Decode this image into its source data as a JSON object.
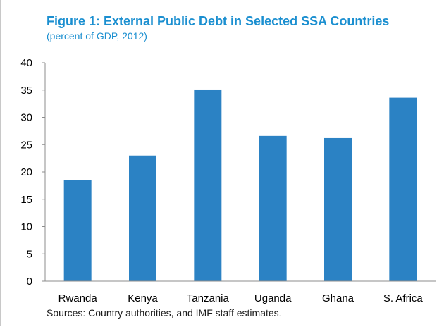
{
  "chart_data": {
    "type": "bar",
    "title": "Figure 1: External Public Debt in Selected SSA Countries",
    "subtitle": "(percent of GDP, 2012)",
    "categories": [
      "Rwanda",
      "Kenya",
      "Tanzania",
      "Uganda",
      "Ghana",
      "S. Africa"
    ],
    "values": [
      18.5,
      23.0,
      35.1,
      26.6,
      26.2,
      33.6
    ],
    "ylim": [
      0,
      40
    ],
    "yticks": [
      "0",
      "5",
      "10",
      "15",
      "20",
      "25",
      "30",
      "35",
      "40"
    ],
    "xlabel": "",
    "ylabel": "",
    "grid": false,
    "legend": "none",
    "bar_color": "#2b82c4"
  },
  "source_note": "Sources: Country authorities, and IMF staff estimates."
}
